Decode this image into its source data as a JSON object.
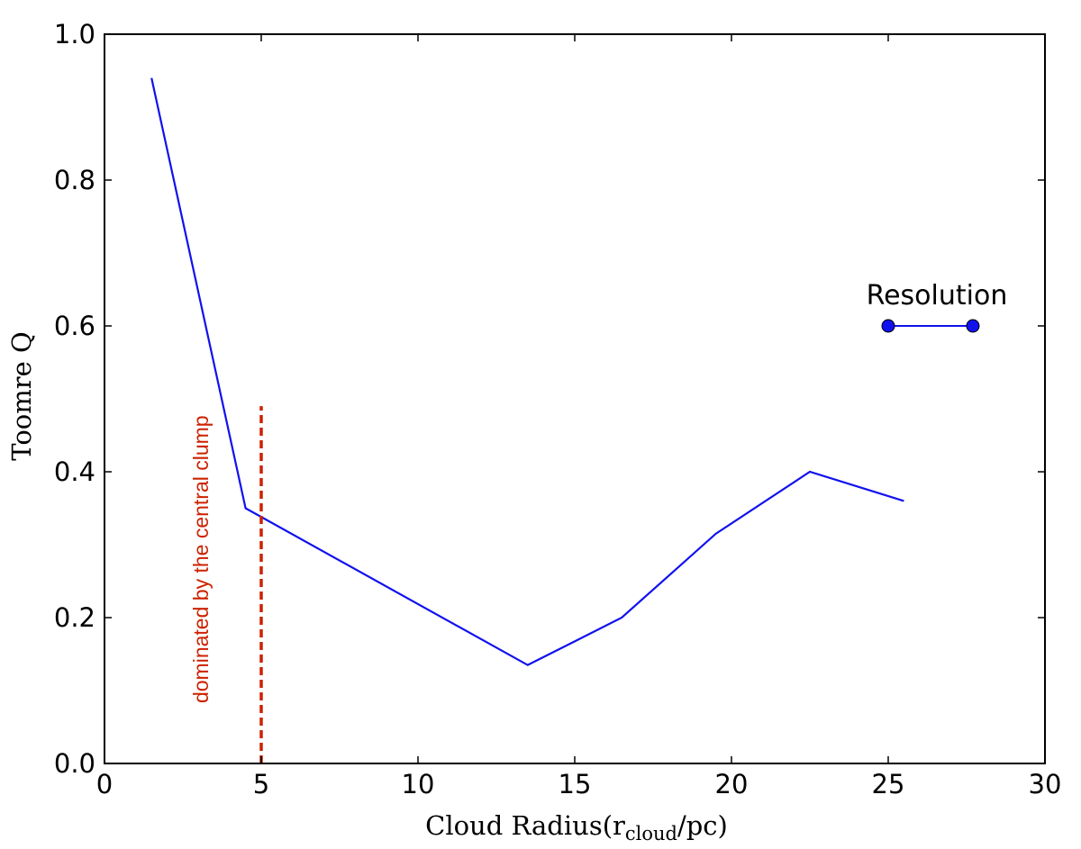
{
  "chart_data": {
    "type": "line",
    "xlabel": "Cloud Radius(r",
    "xlabel_sub": "cloud",
    "xlabel_tail": "/pc)",
    "ylabel": "Toomre Q",
    "xlim": [
      0,
      30
    ],
    "ylim": [
      0.0,
      1.0
    ],
    "xticks": [
      "0",
      "5",
      "10",
      "15",
      "20",
      "25",
      "30"
    ],
    "yticks": [
      "0.0",
      "0.2",
      "0.4",
      "0.6",
      "0.8",
      "1.0"
    ],
    "grid": false,
    "series": [
      {
        "color": "#1111ee",
        "x": [
          1.5,
          4.5,
          13.5,
          16.5,
          19.5,
          22.5,
          25.5
        ],
        "y": [
          0.94,
          0.35,
          0.135,
          0.2,
          0.315,
          0.4,
          0.36
        ]
      }
    ],
    "threshold_line": {
      "x": 5,
      "y_range": [
        0.0,
        0.49
      ],
      "color": "#cc2200",
      "style": "dashed"
    },
    "annotation": {
      "text": "dominated by the central clump",
      "color": "#cc2200",
      "x": 3.3,
      "y": 0.28,
      "rotation": -90
    },
    "resolution_marker": {
      "label": "Resolution",
      "x": [
        25,
        27.7
      ],
      "y": 0.6,
      "color": "#1111ee"
    }
  }
}
